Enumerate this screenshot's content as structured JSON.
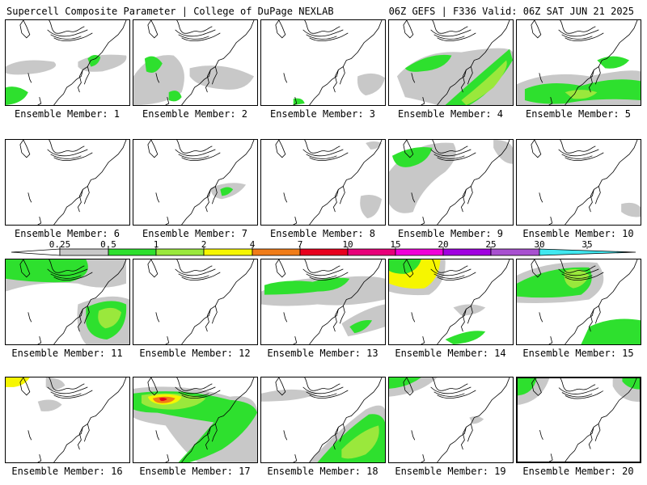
{
  "header": {
    "left": "Supercell Composite Parameter | College of DuPage NEXLAB",
    "right": "06Z GEFS | F336 Valid: 06Z SAT JUN 21 2025"
  },
  "legend": {
    "thresholds": [
      "0.25",
      "0.5",
      "1",
      "2",
      "4",
      "7",
      "10",
      "15",
      "20",
      "25",
      "30",
      "35"
    ],
    "colors": [
      "#c8c8c8",
      "#2ee02e",
      "#9ae83c",
      "#f6f600",
      "#f07c18",
      "#e8001e",
      "#e8007a",
      "#f000d8",
      "#a000e0",
      "#a850d0",
      "#40e8f0"
    ]
  },
  "colors": {
    "light": "#c8c8c8",
    "green": "#2ee02e",
    "lime": "#9ae83c",
    "yellow": "#f6f600",
    "orange": "#f07c18",
    "red": "#e8001e",
    "coast": "#000000"
  },
  "members": [
    {
      "label": "Ensemble Member: 1"
    },
    {
      "label": "Ensemble Member: 2"
    },
    {
      "label": "Ensemble Member: 3"
    },
    {
      "label": "Ensemble Member: 4"
    },
    {
      "label": "Ensemble Member: 5"
    },
    {
      "label": "Ensemble Member: 6"
    },
    {
      "label": "Ensemble Member: 7"
    },
    {
      "label": "Ensemble Member: 8"
    },
    {
      "label": "Ensemble Member: 9"
    },
    {
      "label": "Ensemble Member: 10"
    },
    {
      "label": "Ensemble Member: 11"
    },
    {
      "label": "Ensemble Member: 12"
    },
    {
      "label": "Ensemble Member: 13"
    },
    {
      "label": "Ensemble Member: 14"
    },
    {
      "label": "Ensemble Member: 15"
    },
    {
      "label": "Ensemble Member: 16"
    },
    {
      "label": "Ensemble Member: 17"
    },
    {
      "label": "Ensemble Member: 18"
    },
    {
      "label": "Ensemble Member: 19"
    },
    {
      "label": "Ensemble Member: 20"
    }
  ]
}
